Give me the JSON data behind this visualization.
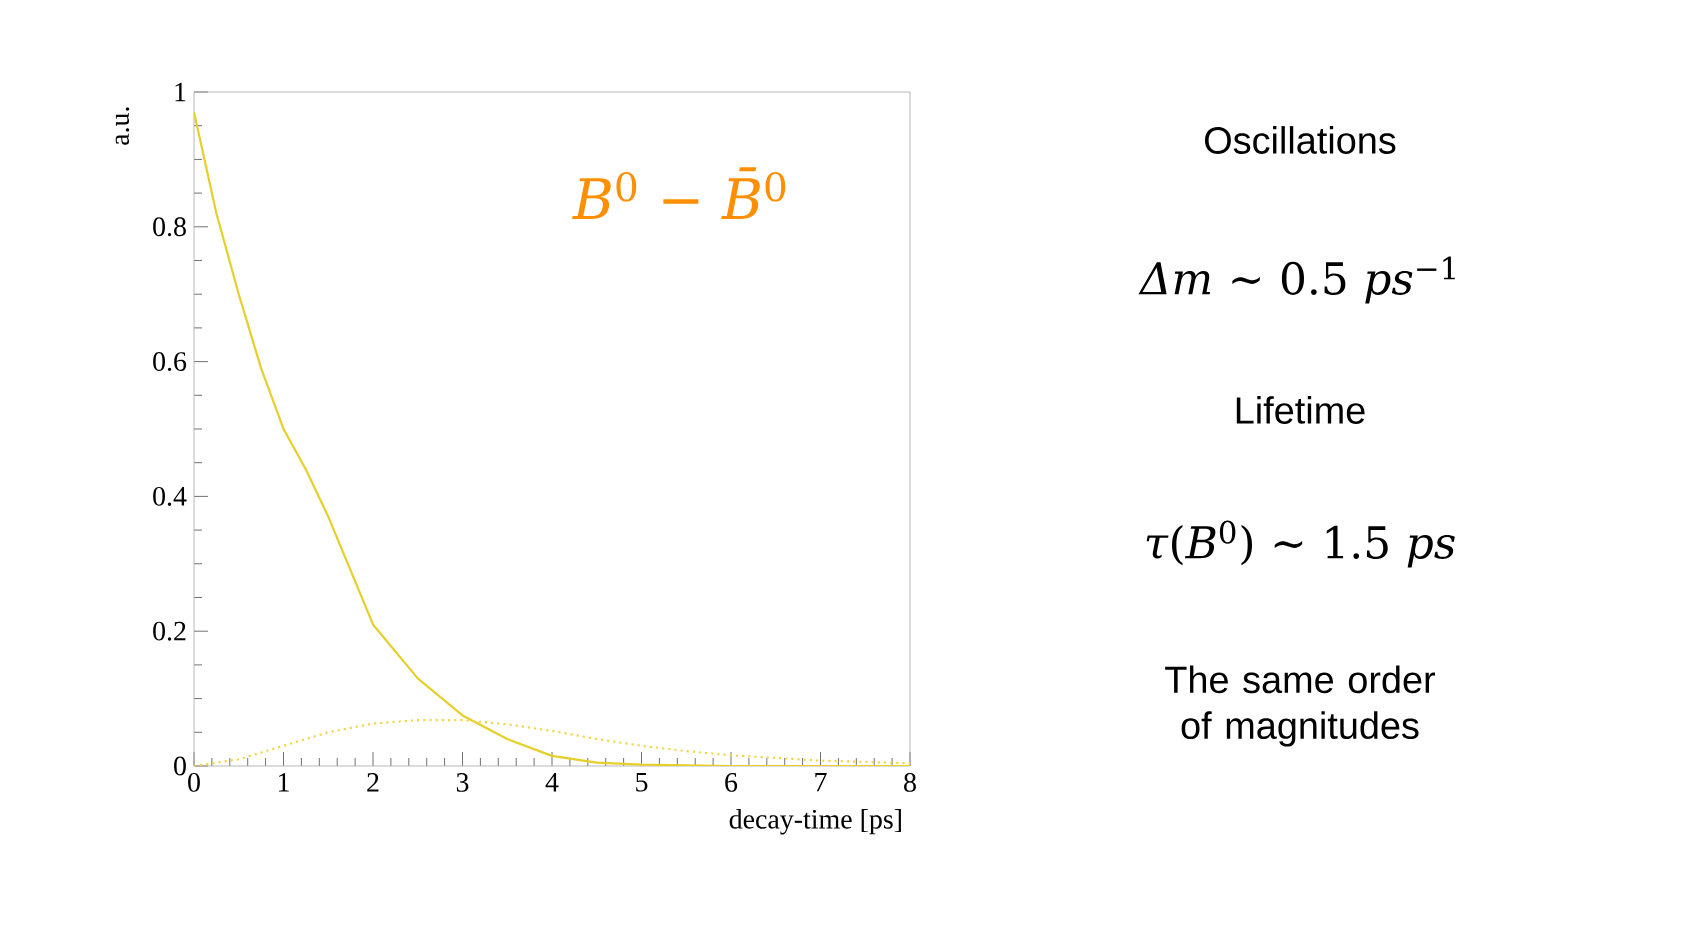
{
  "chart_data": {
    "type": "line",
    "title": "*B*$^{0}$ − *B̄*$^{0}$",
    "xlabel": "decay-time [ps]",
    "ylabel": "a.u.",
    "xlim": [
      0,
      8
    ],
    "ylim": [
      0,
      1
    ],
    "xticks": [
      0,
      1,
      2,
      3,
      4,
      5,
      6,
      7,
      8
    ],
    "yticks": [
      0,
      0.2,
      0.4,
      0.6,
      0.8,
      1
    ],
    "grid": false,
    "marker": "none",
    "series": [
      {
        "color": "#e6cf2a",
        "line_style": "solid",
        "x": [
          0,
          0.25,
          0.5,
          0.75,
          1,
          1.25,
          1.5,
          2,
          2.5,
          3,
          3.5,
          4,
          4.5,
          5,
          6,
          7,
          8
        ],
        "values": [
          0.97,
          0.82,
          0.7,
          0.59,
          0.5,
          0.44,
          0.37,
          0.21,
          0.13,
          0.075,
          0.04,
          0.015,
          0.005,
          0.002,
          0,
          0,
          0
        ]
      },
      {
        "color": "#f2d64a",
        "line_style": "dotted",
        "x": [
          0,
          0.5,
          1,
          1.5,
          2,
          2.5,
          3,
          3.5,
          4,
          4.5,
          5,
          5.5,
          6,
          7,
          8
        ],
        "values": [
          0,
          0.01,
          0.03,
          0.05,
          0.063,
          0.068,
          0.068,
          0.062,
          0.052,
          0.04,
          0.03,
          0.022,
          0.016,
          0.008,
          0.004
        ]
      }
    ],
    "annotations": [
      "Oscillations",
      "*Δm* ∼ 0.5 *ps*$^{−1}$",
      "Lifetime",
      "*τ*(*B*$^{0}$) ∼ 1.5 *ps*",
      "The same order of magnitudes"
    ]
  }
}
